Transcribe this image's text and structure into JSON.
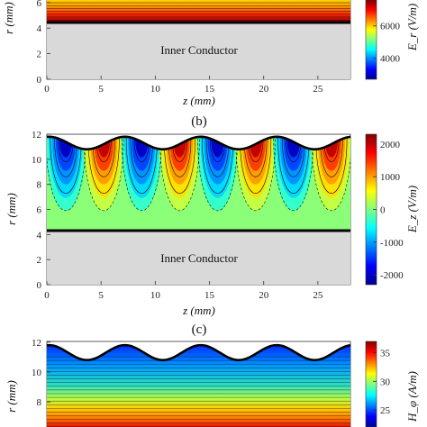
{
  "panels": [
    {
      "id": "a",
      "caption": "",
      "chart_data": {
        "type": "heatmap",
        "xlabel": "z (mm)",
        "ylabel": "r (mm)",
        "x_ticks": [
          0,
          5,
          10,
          15,
          20,
          25
        ],
        "y_ticks": [
          0,
          2,
          4,
          6
        ],
        "xlim": [
          0,
          28
        ],
        "colorbar_label": "E_r (V/m)",
        "colorbar_ticks": [
          4000,
          6000
        ],
        "inner_conductor_radius": 4.4,
        "region_label": "Inner Conductor"
      }
    },
    {
      "id": "b",
      "caption": "(b)",
      "chart_data": {
        "type": "heatmap",
        "xlabel": "z (mm)",
        "ylabel": "r (mm)",
        "x_ticks": [
          0,
          5,
          10,
          15,
          20,
          25
        ],
        "y_ticks": [
          0,
          2,
          4,
          6,
          8,
          10,
          12
        ],
        "xlim": [
          0,
          28
        ],
        "ylim": [
          0,
          12
        ],
        "colorbar_label": "E_z (V/m)",
        "colorbar_ticks": [
          -2000,
          -1000,
          0,
          1000,
          2000
        ],
        "colorbar_range": [
          -2300,
          2300
        ],
        "inner_conductor_radius": 4.4,
        "outer_wall_mean_radius": 11.3,
        "outer_wall_ripple_amplitude": 0.5,
        "ripple_period": 7,
        "region_label": "Inner Conductor"
      }
    },
    {
      "id": "c",
      "caption": "(c)",
      "chart_data": {
        "type": "heatmap",
        "xlabel": "",
        "ylabel": "r (mm)",
        "x_ticks": [],
        "y_ticks": [
          6,
          8,
          10,
          12
        ],
        "xlim": [
          0,
          28
        ],
        "colorbar_label": "H_φ (A/m)",
        "colorbar_ticks": [
          25,
          30,
          35
        ],
        "colorbar_range": [
          22,
          37
        ],
        "outer_wall_mean_radius": 11.3,
        "outer_wall_ripple_amplitude": 0.5,
        "ripple_period": 7
      }
    }
  ]
}
